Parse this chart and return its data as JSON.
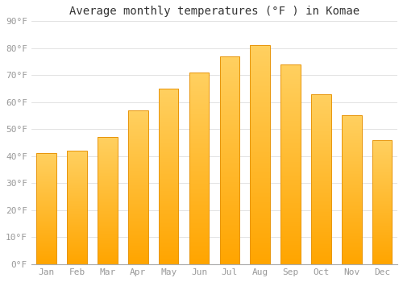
{
  "title": "Average monthly temperatures (°F ) in Komae",
  "months": [
    "Jan",
    "Feb",
    "Mar",
    "Apr",
    "May",
    "Jun",
    "Jul",
    "Aug",
    "Sep",
    "Oct",
    "Nov",
    "Dec"
  ],
  "values": [
    41,
    42,
    47,
    57,
    65,
    71,
    77,
    81,
    74,
    63,
    55,
    46
  ],
  "bar_color_light": "#FFD060",
  "bar_color_dark": "#FFA500",
  "background_color": "#FFFFFF",
  "grid_color": "#DDDDDD",
  "ylim": [
    0,
    90
  ],
  "ytick_step": 10,
  "title_fontsize": 10,
  "tick_fontsize": 8,
  "font_family": "monospace",
  "tick_color": "#999999",
  "spine_color": "#AAAAAA"
}
